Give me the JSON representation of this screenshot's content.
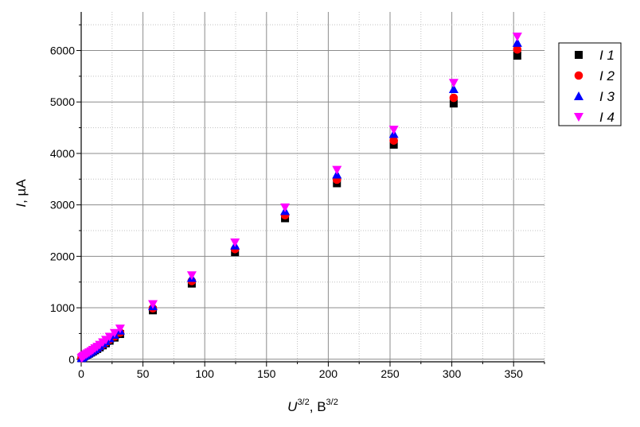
{
  "chart_data": {
    "type": "scatter",
    "xlabel": {
      "main": "U",
      "main_sup": "3/2",
      "sep": ", ",
      "unit": "B",
      "unit_sup": "3/2"
    },
    "ylabel": {
      "main": "I",
      "sep": ", ",
      "unit": "µA"
    },
    "xlim": [
      0,
      375
    ],
    "ylim": [
      -50,
      6750
    ],
    "x_ticks": [
      0,
      50,
      100,
      150,
      200,
      250,
      300,
      350
    ],
    "x_tick_labels": [
      "0",
      "50",
      "100",
      "150",
      "200",
      "250",
      "300",
      "350"
    ],
    "y_ticks": [
      0,
      1000,
      2000,
      3000,
      4000,
      5000,
      6000
    ],
    "y_tick_labels": [
      "0",
      "1000",
      "2000",
      "3000",
      "4000",
      "5000",
      "6000"
    ],
    "grid": true,
    "legend_position": "right",
    "x": [
      0.3,
      1.0,
      1.8,
      2.8,
      4.0,
      5.2,
      6.5,
      8.0,
      9.5,
      11.2,
      13.0,
      15.0,
      17.5,
      20.0,
      23.0,
      27.0,
      31.5,
      58,
      89.5,
      124.5,
      165,
      207,
      253,
      301.5,
      353
    ],
    "series": [
      {
        "name": "1",
        "marker": "square",
        "color": "#000000",
        "values": [
          20,
          35,
          50,
          65,
          80,
          95,
          110,
          130,
          150,
          175,
          200,
          230,
          270,
          310,
          360,
          420,
          490,
          950,
          1470,
          2080,
          2740,
          3420,
          4170,
          4970,
          5900
        ]
      },
      {
        "name": "2",
        "marker": "circle",
        "color": "#ff0000",
        "values": [
          22,
          37,
          53,
          68,
          84,
          100,
          117,
          137,
          158,
          185,
          210,
          243,
          285,
          327,
          380,
          443,
          517,
          990,
          1520,
          2140,
          2800,
          3490,
          4250,
          5080,
          6020
        ]
      },
      {
        "name": "3",
        "marker": "triangle-up",
        "color": "#0000ff",
        "values": [
          24,
          40,
          57,
          73,
          90,
          107,
          125,
          147,
          170,
          198,
          226,
          261,
          306,
          351,
          408,
          476,
          556,
          1030,
          1580,
          2210,
          2880,
          3590,
          4380,
          5250,
          6150
        ]
      },
      {
        "name": "4",
        "marker": "triangle-down",
        "color": "#ff00ff",
        "values": [
          26,
          43,
          61,
          78,
          96,
          114,
          134,
          157,
          182,
          212,
          242,
          280,
          328,
          376,
          437,
          510,
          595,
          1070,
          1630,
          2270,
          2950,
          3680,
          4460,
          5370,
          6270
        ]
      }
    ]
  }
}
